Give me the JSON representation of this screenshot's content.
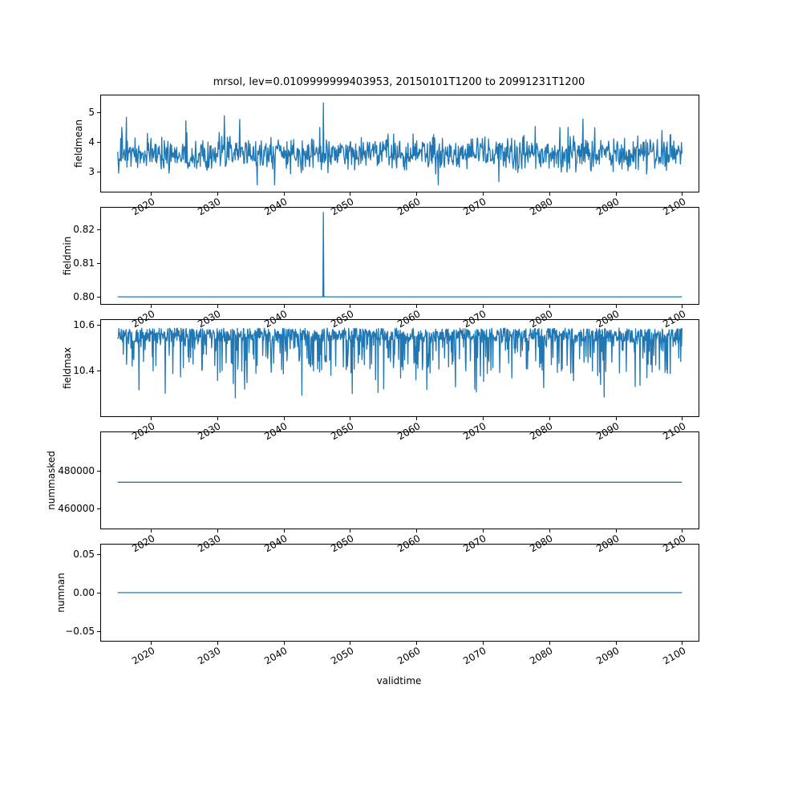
{
  "line_color": "#1f77b4",
  "axis_color": "#000000",
  "background_color": "#ffffff",
  "chart_data": {
    "type": "line",
    "title": "mrsol, lev=0.0109999999403953, 20150101T1200 to 20991231T1200",
    "xlabel": "validtime",
    "grid": false,
    "legend": "none",
    "x_range": [
      2015,
      2100
    ],
    "xlim": [
      2012.5,
      2102.5
    ],
    "x_ticks": [
      "2020",
      "2030",
      "2040",
      "2050",
      "2060",
      "2070",
      "2080",
      "2090",
      "2100"
    ],
    "subplots": [
      {
        "ylabel": "fieldmean",
        "ylim": [
          2.32,
          5.57
        ],
        "yticks": [
          "3",
          "4",
          "5"
        ],
        "ytick_values": [
          3,
          4,
          5
        ],
        "series": {
          "kind": "noisy",
          "base": 3.6,
          "spread": 0.8,
          "min": 2.55,
          "max": 5.05,
          "spike_x": 2046,
          "spike_value": 5.32,
          "points": 1100
        }
      },
      {
        "ylabel": "fieldmin",
        "ylim": [
          0.7979,
          0.8264
        ],
        "yticks": [
          "0.80",
          "0.81",
          "0.82"
        ],
        "ytick_values": [
          0.8,
          0.81,
          0.82
        ],
        "series": {
          "kind": "flat_spike",
          "base": 0.8,
          "spike_x": 2046,
          "spike_value": 0.825,
          "points": 1100
        }
      },
      {
        "ylabel": "fieldmax",
        "ylim": [
          10.2,
          10.62
        ],
        "yticks": [
          "10.4",
          "10.6"
        ],
        "ytick_values": [
          10.4,
          10.6
        ],
        "series": {
          "kind": "noisy_top",
          "base": 10.585,
          "small_dip": 0.06,
          "mid_dip": 0.2,
          "big_dip": 0.32,
          "mid_prob": 0.22,
          "big_prob": 0.02,
          "points": 1400
        }
      },
      {
        "ylabel": "nummasked",
        "ylim": [
          449000,
          501000
        ],
        "yticks": [
          "460000",
          "480000"
        ],
        "ytick_values": [
          460000,
          480000
        ],
        "series": {
          "kind": "flat",
          "value": 474000
        }
      },
      {
        "ylabel": "numnan",
        "ylim": [
          -0.0625,
          0.0625
        ],
        "yticks": [
          "−0.05",
          "0.00",
          "0.05"
        ],
        "ytick_values": [
          -0.05,
          0,
          0.05
        ],
        "series": {
          "kind": "flat",
          "value": 0
        }
      }
    ]
  }
}
